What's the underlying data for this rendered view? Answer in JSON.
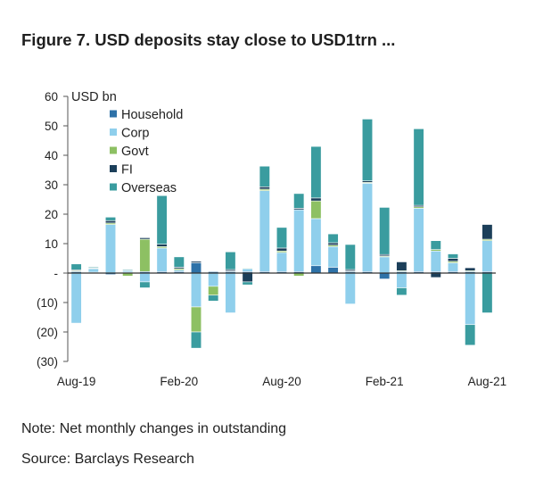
{
  "title": "Figure 7. USD deposits stay close to USD1trn ...",
  "note": "Note: Net monthly changes in outstanding",
  "source": "Source: Barclays Research",
  "chart_data": {
    "type": "bar",
    "stacked": true,
    "unit_label": "USD bn",
    "ylim": [
      -30,
      60
    ],
    "y_ticks": [
      {
        "value": 60,
        "label": "60"
      },
      {
        "value": 50,
        "label": "50"
      },
      {
        "value": 40,
        "label": "40"
      },
      {
        "value": 30,
        "label": "30"
      },
      {
        "value": 20,
        "label": "20"
      },
      {
        "value": 10,
        "label": "10"
      },
      {
        "value": 0,
        "label": "-"
      },
      {
        "value": -10,
        "label": "(10)"
      },
      {
        "value": -20,
        "label": "(20)"
      },
      {
        "value": -30,
        "label": "(30)"
      }
    ],
    "categories": [
      "Aug-19",
      "Sep-19",
      "Oct-19",
      "Nov-19",
      "Dec-19",
      "Jan-20",
      "Feb-20",
      "Mar-20",
      "Apr-20",
      "May-20",
      "Jun-20",
      "Jul-20",
      "Aug-20",
      "Sep-20",
      "Oct-20",
      "Nov-20",
      "Dec-20",
      "Jan-21",
      "Feb-21",
      "Mar-21",
      "Apr-21",
      "May-21",
      "Jun-21",
      "Jul-21",
      "Aug-21"
    ],
    "x_tick_labels": [
      {
        "index": 0,
        "label": "Aug-19"
      },
      {
        "index": 6,
        "label": "Feb-20"
      },
      {
        "index": 12,
        "label": "Aug-20"
      },
      {
        "index": 18,
        "label": "Feb-21"
      },
      {
        "index": 24,
        "label": "Aug-21"
      }
    ],
    "legend_position": "top-left",
    "series": [
      {
        "name": "Household",
        "color": "#2e72a8",
        "values": [
          0.5,
          0.3,
          -0.5,
          0.3,
          0.5,
          0.5,
          0.5,
          3.5,
          0.5,
          0.5,
          0.5,
          0.5,
          0.5,
          0.5,
          2.5,
          2.0,
          0.5,
          0.5,
          -2.0,
          0.5,
          0.5,
          0.5,
          0.5,
          0.5,
          0.5
        ]
      },
      {
        "name": "Corp",
        "color": "#8fcfec",
        "values": [
          -17.0,
          1.2,
          16.5,
          0.5,
          -3.0,
          8.0,
          0.5,
          -11.5,
          -4.5,
          -13.5,
          1.0,
          27.5,
          6.5,
          21.0,
          16.0,
          7.0,
          -10.5,
          30.0,
          5.5,
          -5.0,
          21.5,
          7.0,
          3.0,
          -17.5,
          10.5
        ]
      },
      {
        "name": "Govt",
        "color": "#8dc063",
        "values": [
          0.3,
          0.2,
          0.5,
          -1.0,
          11.0,
          0.5,
          0.5,
          -8.5,
          -3.0,
          0.2,
          0.2,
          0.5,
          0.5,
          -1.0,
          6.0,
          0.5,
          0.2,
          0.3,
          0.3,
          0.3,
          0.5,
          0.5,
          0.5,
          0.3,
          0.5
        ]
      },
      {
        "name": "FI",
        "color": "#1c3f5a",
        "values": [
          0.3,
          0.2,
          0.8,
          0.2,
          0.5,
          0.8,
          0.5,
          0.5,
          0.2,
          0.5,
          -3.0,
          0.8,
          1.0,
          0.5,
          1.0,
          0.8,
          0.5,
          0.5,
          0.5,
          3.0,
          0.5,
          -1.5,
          1.0,
          1.0,
          5.0
        ]
      },
      {
        "name": "Overseas",
        "color": "#3a9c9f",
        "values": [
          2.0,
          0.3,
          1.2,
          0.3,
          -2.0,
          16.5,
          3.5,
          -5.5,
          -2.0,
          6.0,
          -1.0,
          7.0,
          7.0,
          5.0,
          17.5,
          3.0,
          8.5,
          21.0,
          16.0,
          -2.5,
          26.0,
          3.0,
          1.5,
          -7.0,
          -13.5
        ]
      }
    ]
  }
}
